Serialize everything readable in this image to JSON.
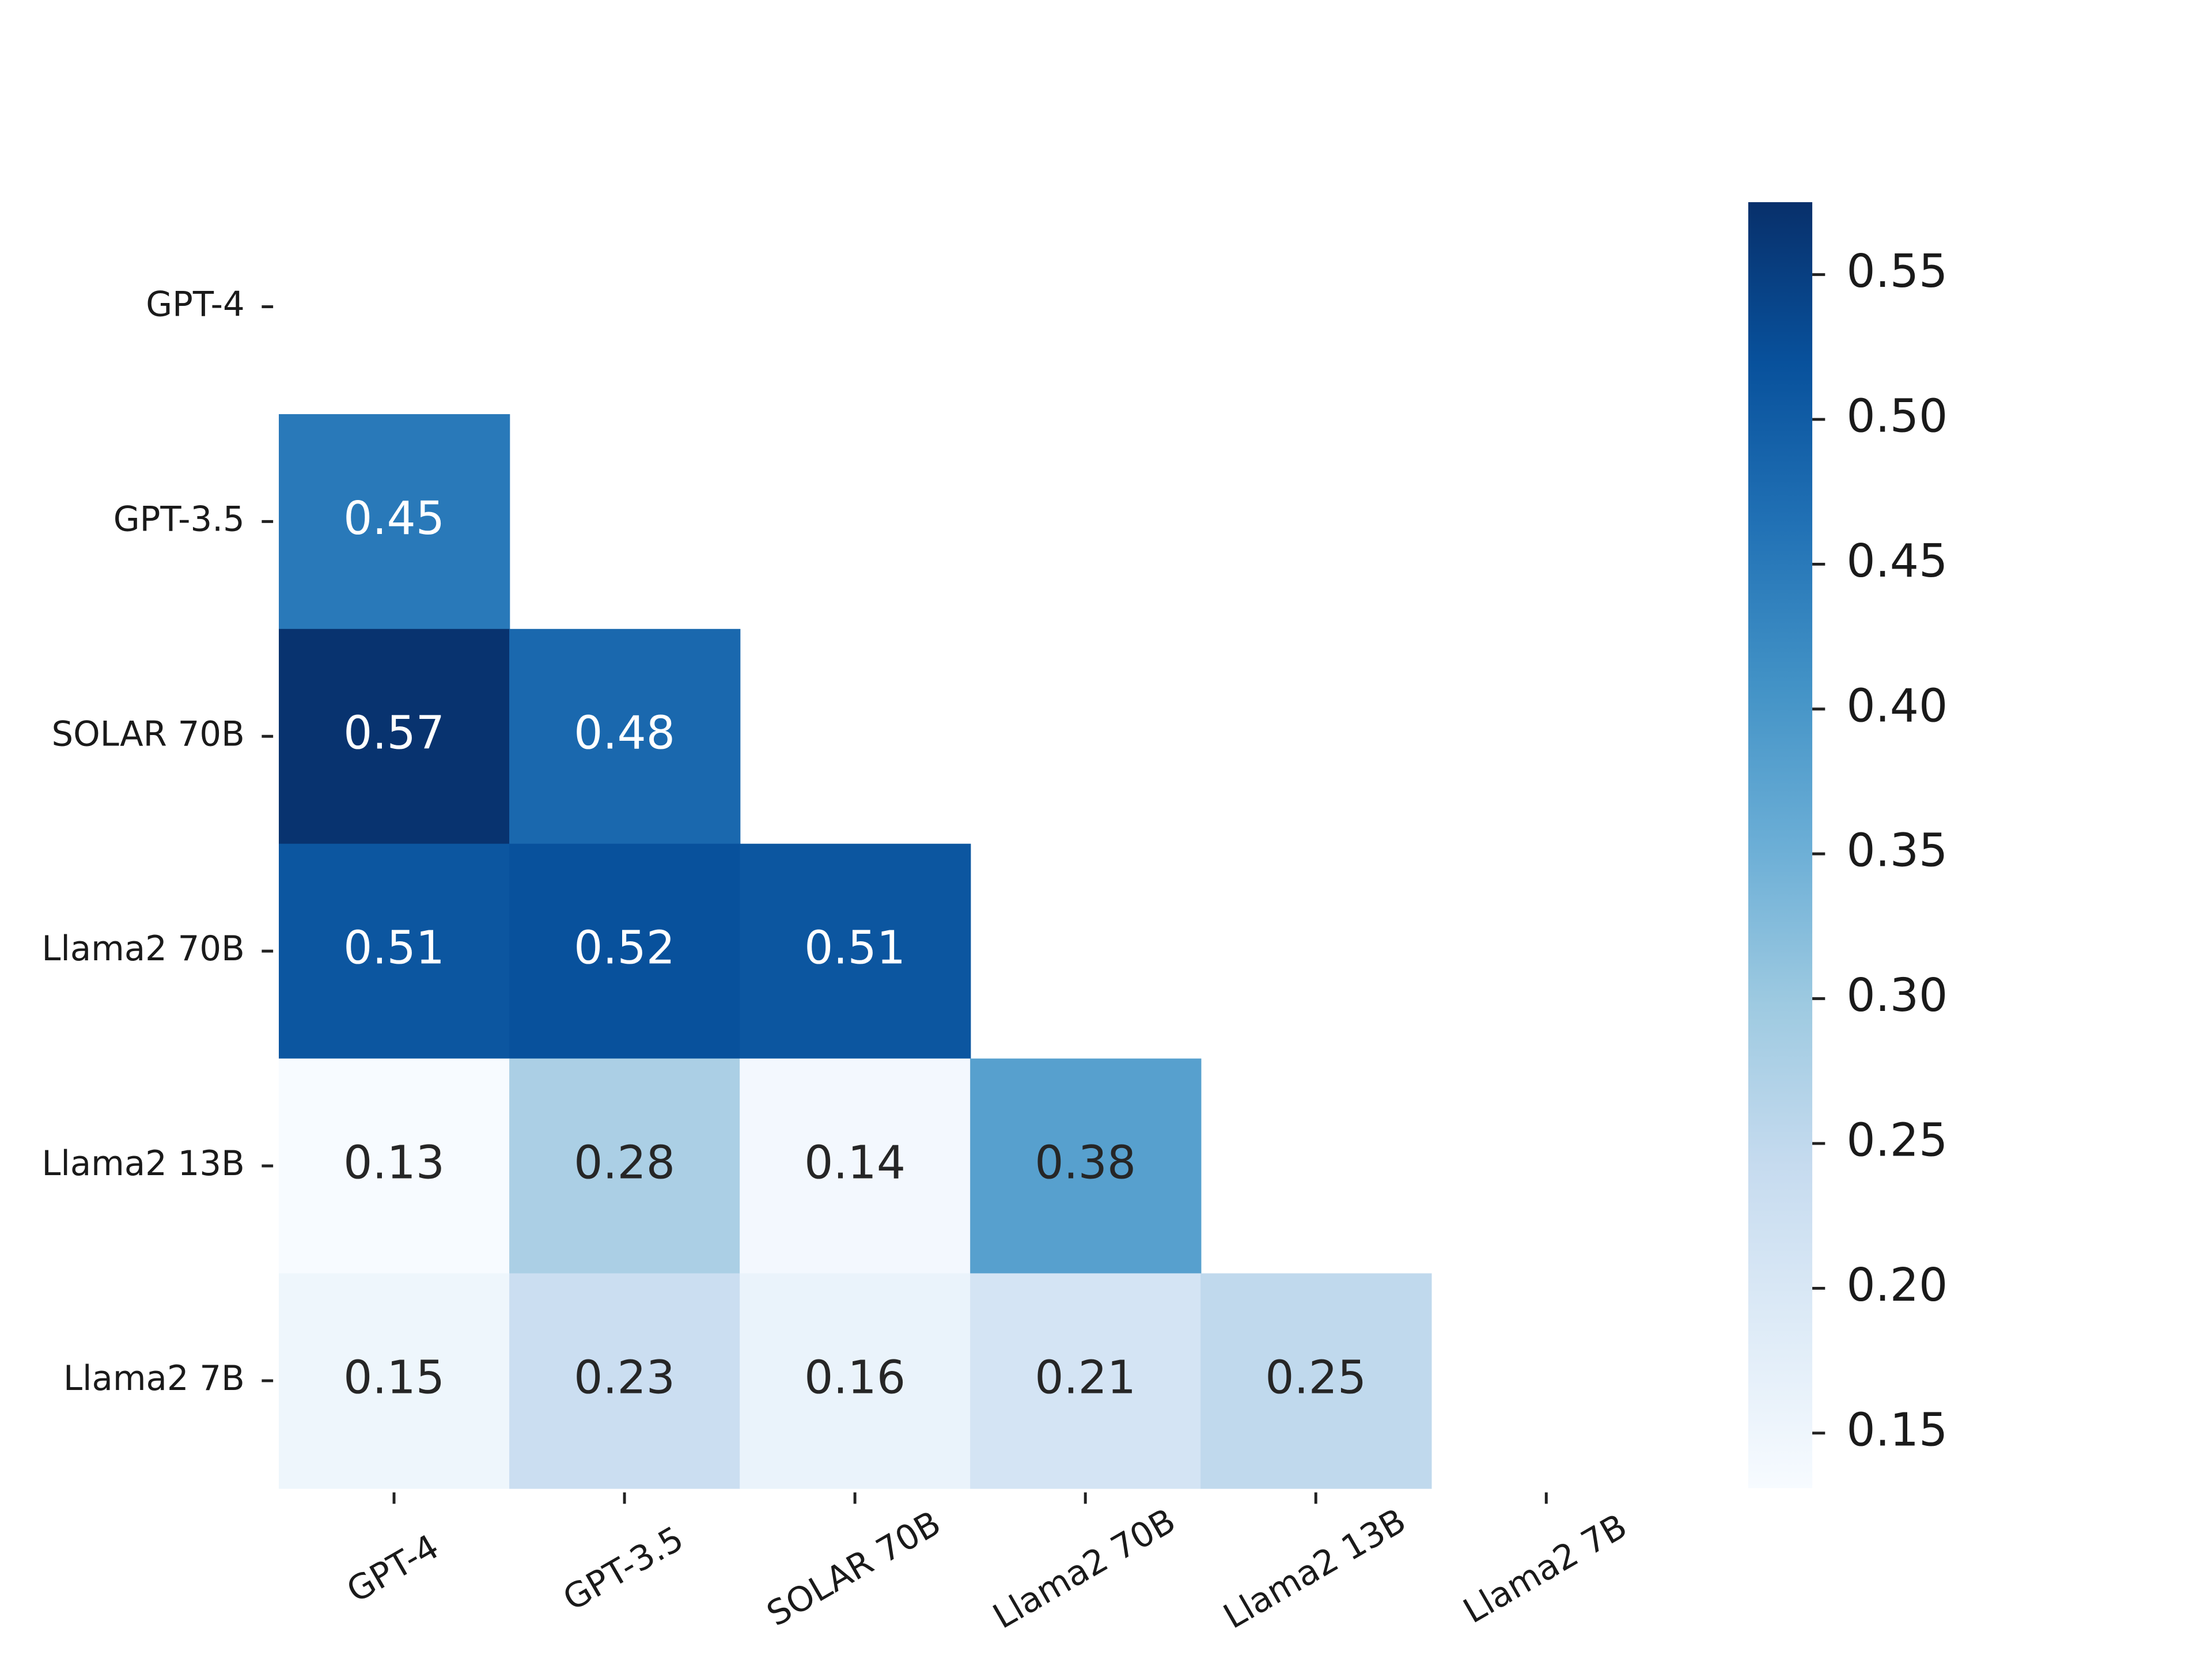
{
  "chart_data": {
    "type": "heatmap",
    "categories": [
      "GPT-4",
      "GPT-3.5",
      "SOLAR 70B",
      "Llama2 70B",
      "Llama2 13B",
      "Llama2 7B"
    ],
    "y_categories": [
      "GPT-4",
      "GPT-3.5",
      "SOLAR 70B",
      "Llama2 70B",
      "Llama2 13B",
      "Llama2 7B"
    ],
    "values": [
      [
        null,
        null,
        null,
        null,
        null,
        null
      ],
      [
        0.45,
        null,
        null,
        null,
        null,
        null
      ],
      [
        0.57,
        0.48,
        null,
        null,
        null,
        null
      ],
      [
        0.51,
        0.52,
        0.51,
        null,
        null,
        null
      ],
      [
        0.13,
        0.28,
        0.14,
        0.38,
        null,
        null
      ],
      [
        0.15,
        0.23,
        0.16,
        0.21,
        0.25,
        null
      ]
    ],
    "colormap": [
      "#f7fbff",
      "#deebf7",
      "#c6dbef",
      "#9ecae1",
      "#6baed6",
      "#4292c6",
      "#2171b5",
      "#08519c",
      "#08306b"
    ],
    "clim": [
      0.131,
      0.575
    ],
    "cticks": [
      0.15,
      {
        "value": 0.2,
        "label": "0.20"
      },
      0.25,
      {
        "value": 0.3,
        "label": "0.30"
      },
      0.35,
      {
        "value": 0.4,
        "label": "0.40"
      },
      0.45,
      {
        "value": 0.5,
        "label": "0.50"
      },
      0.55
    ]
  }
}
